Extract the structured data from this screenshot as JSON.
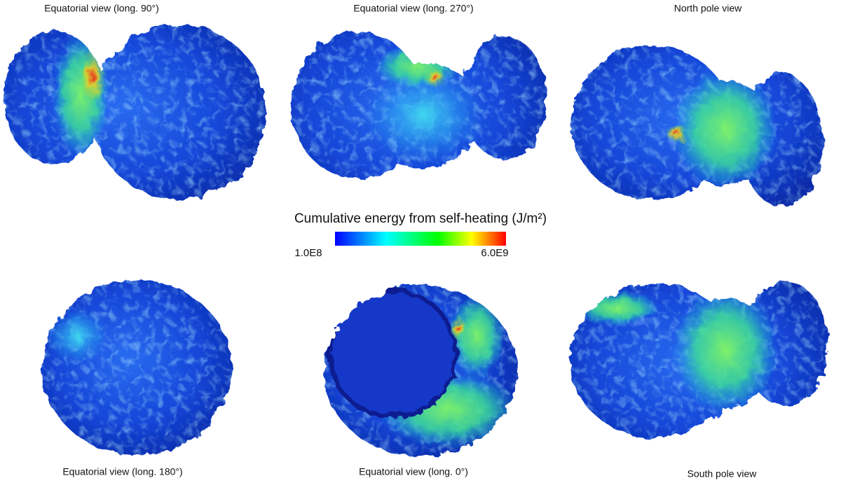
{
  "panels": [
    {
      "label": "Equatorial view (long. 90°)"
    },
    {
      "label": "Equatorial view (long. 270°)"
    },
    {
      "label": "North pole view"
    },
    {
      "label": "Equatorial view (long. 180°)"
    },
    {
      "label": "Equatorial view (long. 0°)"
    },
    {
      "label": "South pole view"
    }
  ],
  "colorbar": {
    "title": "Cumulative energy from self-heating (J/m²)",
    "min_label": "1.0E8",
    "max_label": "6.0E9"
  }
}
